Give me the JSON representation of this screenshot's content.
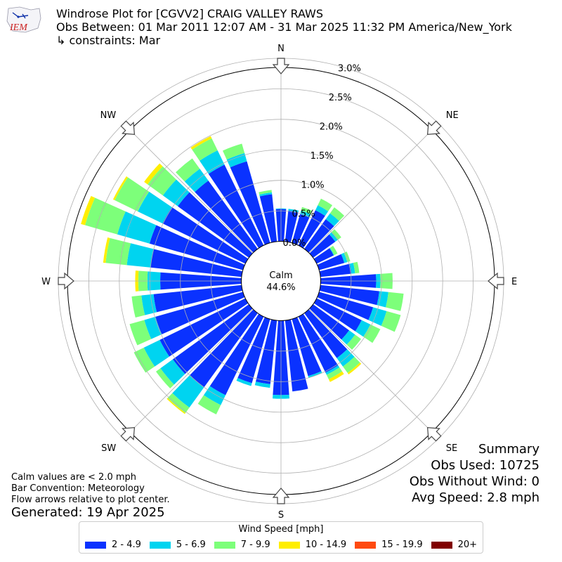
{
  "logo": {
    "text": "IEM"
  },
  "title": {
    "line1": "Windrose Plot for [CGVV2] CRAIG VALLEY RAWS",
    "line2": "Obs Between: 01 Mar 2011 12:07 AM - 31 Mar 2025 11:32 PM America/New_York",
    "line3": "↳ constraints: Mar"
  },
  "notes": {
    "calm_def": "Calm values are < 2.0 mph",
    "convention": "Bar Convention: Meteorology",
    "flow": "Flow arrows relative to plot center.",
    "generated": "Generated: 19 Apr 2025"
  },
  "summary": {
    "heading": "Summary",
    "obs_used": "Obs Used: 10725",
    "obs_without_wind": "Obs Without Wind: 0",
    "avg_speed": "Avg Speed: 2.8 mph"
  },
  "legend": {
    "title": "Wind Speed [mph]"
  },
  "chart_data": {
    "type": "windrose",
    "calm_label": "Calm",
    "calm_percent": "44.6%",
    "radial_ticks": [
      0.0,
      0.5,
      1.0,
      1.5,
      2.0,
      2.5,
      3.0
    ],
    "radial_tick_labels": [
      "0.0%",
      "0.5%",
      "1.0%",
      "1.5%",
      "2.0%",
      "2.5%",
      "3.0%"
    ],
    "rmax": 3.5,
    "calm_radius_pct": 0.65,
    "direction_labels": [
      {
        "label": "N",
        "angle": 0
      },
      {
        "label": "NE",
        "angle": 45
      },
      {
        "label": "E",
        "angle": 90
      },
      {
        "label": "SE",
        "angle": 135
      },
      {
        "label": "S",
        "angle": 180
      },
      {
        "label": "SW",
        "angle": 225
      },
      {
        "label": "W",
        "angle": 270
      },
      {
        "label": "NW",
        "angle": 315
      }
    ],
    "series": [
      {
        "name": "2 - 4.9",
        "color": "#0a32ff"
      },
      {
        "name": "5 - 6.9",
        "color": "#00d4f0"
      },
      {
        "name": "7 - 9.9",
        "color": "#7dff7a"
      },
      {
        "name": "10 - 14.9",
        "color": "#ffee00"
      },
      {
        "name": "15 - 19.9",
        "color": "#ff4a10"
      },
      {
        "name": "20+",
        "color": "#800000"
      }
    ],
    "sectors": [
      {
        "dir": 0,
        "values": [
          0.53,
          0.01,
          0.0,
          0.0,
          0.0,
          0.0
        ]
      },
      {
        "dir": 10,
        "values": [
          0.51,
          0.03,
          0.0,
          0.0,
          0.0,
          0.0
        ]
      },
      {
        "dir": 20,
        "values": [
          0.49,
          0.06,
          0.06,
          0.0,
          0.0,
          0.0
        ]
      },
      {
        "dir": 30,
        "values": [
          0.64,
          0.09,
          0.12,
          0.0,
          0.0,
          0.0
        ]
      },
      {
        "dir": 40,
        "values": [
          0.6,
          0.12,
          0.12,
          0.0,
          0.0,
          0.0
        ]
      },
      {
        "dir": 50,
        "values": [
          0.45,
          0.05,
          0.07,
          0.0,
          0.0,
          0.0
        ]
      },
      {
        "dir": 60,
        "values": [
          0.31,
          0.01,
          0.06,
          0.0,
          0.0,
          0.0
        ]
      },
      {
        "dir": 70,
        "values": [
          0.43,
          0.05,
          0.05,
          0.0,
          0.0,
          0.0
        ]
      },
      {
        "dir": 80,
        "values": [
          0.51,
          0.06,
          0.07,
          0.0,
          0.0,
          0.0
        ]
      },
      {
        "dir": 90,
        "values": [
          0.91,
          0.07,
          0.2,
          0.0,
          0.0,
          0.0
        ]
      },
      {
        "dir": 100,
        "values": [
          0.97,
          0.15,
          0.25,
          0.0,
          0.0,
          0.0
        ]
      },
      {
        "dir": 110,
        "values": [
          0.92,
          0.23,
          0.24,
          0.0,
          0.0,
          0.0
        ]
      },
      {
        "dir": 120,
        "values": [
          0.82,
          0.16,
          0.18,
          0.0,
          0.0,
          0.0
        ]
      },
      {
        "dir": 130,
        "values": [
          0.73,
          0.12,
          0.12,
          0.0,
          0.0,
          0.0
        ]
      },
      {
        "dir": 140,
        "values": [
          0.91,
          0.17,
          0.13,
          0.03,
          0.0,
          0.0
        ]
      },
      {
        "dir": 150,
        "values": [
          1.02,
          0.04,
          0.08,
          0.05,
          0.0,
          0.0
        ]
      },
      {
        "dir": 160,
        "values": [
          0.97,
          0.03,
          0.0,
          0.0,
          0.0,
          0.0
        ]
      },
      {
        "dir": 170,
        "values": [
          1.17,
          0.0,
          0.0,
          0.0,
          0.0,
          0.0
        ]
      },
      {
        "dir": 180,
        "values": [
          1.22,
          0.06,
          0.0,
          0.0,
          0.0,
          0.0
        ]
      },
      {
        "dir": 190,
        "values": [
          1.05,
          0.06,
          0.0,
          0.0,
          0.0,
          0.0
        ]
      },
      {
        "dir": 200,
        "values": [
          1.09,
          0.05,
          0.0,
          0.0,
          0.0,
          0.0
        ]
      },
      {
        "dir": 210,
        "values": [
          1.43,
          0.18,
          0.17,
          0.0,
          0.0,
          0.0
        ]
      },
      {
        "dir": 220,
        "values": [
          1.5,
          0.41,
          0.11,
          0.02,
          0.0,
          0.0
        ]
      },
      {
        "dir": 230,
        "values": [
          1.54,
          0.25,
          0.09,
          0.0,
          0.0,
          0.0
        ]
      },
      {
        "dir": 240,
        "values": [
          1.56,
          0.29,
          0.18,
          0.0,
          0.0,
          0.0
        ]
      },
      {
        "dir": 250,
        "values": [
          1.49,
          0.19,
          0.25,
          0.0,
          0.0,
          0.0
        ]
      },
      {
        "dir": 260,
        "values": [
          1.45,
          0.2,
          0.16,
          0.0,
          0.0,
          0.0
        ]
      },
      {
        "dir": 270,
        "values": [
          1.33,
          0.21,
          0.15,
          0.05,
          0.0,
          0.0
        ]
      },
      {
        "dir": 280,
        "values": [
          1.5,
          0.39,
          0.35,
          0.04,
          0.0,
          0.0
        ]
      },
      {
        "dir": 290,
        "values": [
          1.59,
          0.55,
          0.55,
          0.07,
          0.0,
          0.0
        ]
      },
      {
        "dir": 300,
        "values": [
          1.51,
          0.45,
          0.42,
          0.03,
          0.0,
          0.0
        ]
      },
      {
        "dir": 310,
        "values": [
          1.44,
          0.3,
          0.31,
          0.07,
          0.0,
          0.0
        ]
      },
      {
        "dir": 320,
        "values": [
          1.38,
          0.24,
          0.21,
          0.0,
          0.0,
          0.0
        ]
      },
      {
        "dir": 330,
        "values": [
          1.47,
          0.26,
          0.22,
          0.04,
          0.0,
          0.0
        ]
      },
      {
        "dir": 340,
        "values": [
          1.39,
          0.14,
          0.16,
          0.0,
          0.0,
          0.0
        ]
      },
      {
        "dir": 350,
        "values": [
          0.78,
          0.03,
          0.04,
          0.0,
          0.0,
          0.0
        ]
      }
    ]
  }
}
